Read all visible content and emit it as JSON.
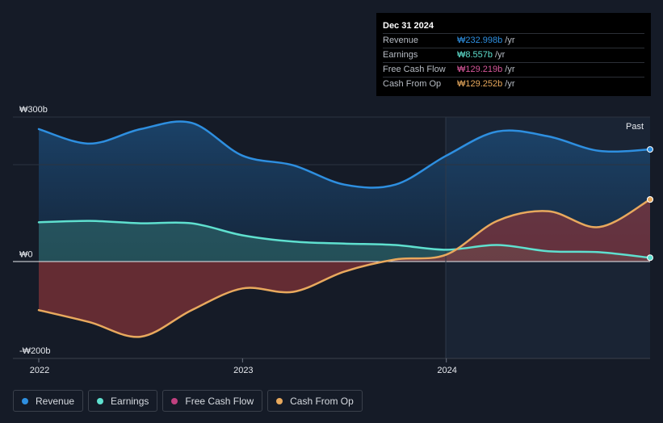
{
  "tooltip": {
    "date": "Dec 31 2024",
    "rows": [
      {
        "label": "Revenue",
        "value": "₩232.998b",
        "unit": "/yr",
        "color": "#2e8fe0"
      },
      {
        "label": "Earnings",
        "value": "₩8.557b",
        "unit": "/yr",
        "color": "#5fe0cf"
      },
      {
        "label": "Free Cash Flow",
        "value": "₩129.219b",
        "unit": "/yr",
        "color": "#d6579a"
      },
      {
        "label": "Cash From Op",
        "value": "₩129.252b",
        "unit": "/yr",
        "color": "#e8a95d"
      }
    ]
  },
  "legend": [
    {
      "label": "Revenue",
      "color": "#2e8fe0"
    },
    {
      "label": "Earnings",
      "color": "#5fe0cf"
    },
    {
      "label": "Free Cash Flow",
      "color": "#c0407f"
    },
    {
      "label": "Cash From Op",
      "color": "#e8a95d"
    }
  ],
  "chart_data": {
    "type": "area",
    "title": "",
    "unit_prefix": "₩",
    "y_tick_labels": [
      "₩300b",
      "₩0",
      "-₩200b"
    ],
    "y_ticks": [
      300,
      0,
      -200
    ],
    "ylim": [
      -200,
      300
    ],
    "x_tick_labels": [
      "2022",
      "2023",
      "2024"
    ],
    "x_ticks": [
      2022.0,
      2023.0,
      2024.0
    ],
    "xlim": [
      2022.0,
      2025.0
    ],
    "past_label": "Past",
    "past_start": 2024.0,
    "series": [
      {
        "name": "Revenue",
        "color": "#2e8fe0",
        "points": [
          [
            2022.0,
            275
          ],
          [
            2022.25,
            245
          ],
          [
            2022.5,
            275
          ],
          [
            2022.75,
            288
          ],
          [
            2023.0,
            220
          ],
          [
            2023.25,
            200
          ],
          [
            2023.5,
            160
          ],
          [
            2023.75,
            160
          ],
          [
            2024.0,
            220
          ],
          [
            2024.25,
            270
          ],
          [
            2024.5,
            260
          ],
          [
            2024.75,
            230
          ],
          [
            2025.0,
            233
          ]
        ]
      },
      {
        "name": "Earnings",
        "color": "#5fe0cf",
        "points": [
          [
            2022.0,
            82
          ],
          [
            2022.25,
            85
          ],
          [
            2022.5,
            80
          ],
          [
            2022.75,
            80
          ],
          [
            2023.0,
            55
          ],
          [
            2023.25,
            42
          ],
          [
            2023.5,
            38
          ],
          [
            2023.75,
            35
          ],
          [
            2024.0,
            25
          ],
          [
            2024.25,
            35
          ],
          [
            2024.5,
            22
          ],
          [
            2024.75,
            20
          ],
          [
            2025.0,
            8.6
          ]
        ]
      },
      {
        "name": "Free Cash Flow",
        "color": "#d6579a",
        "points": [
          [
            2022.0,
            -100
          ],
          [
            2022.25,
            -125
          ],
          [
            2022.5,
            -155
          ],
          [
            2022.75,
            -100
          ],
          [
            2023.0,
            -55
          ],
          [
            2023.25,
            -62
          ],
          [
            2023.5,
            -20
          ],
          [
            2023.75,
            5
          ],
          [
            2024.0,
            15
          ],
          [
            2024.25,
            85
          ],
          [
            2024.5,
            105
          ],
          [
            2024.75,
            72
          ],
          [
            2025.0,
            129.2
          ]
        ]
      },
      {
        "name": "Cash From Op",
        "color": "#e8a95d",
        "points": [
          [
            2022.0,
            -100
          ],
          [
            2022.25,
            -125
          ],
          [
            2022.5,
            -155
          ],
          [
            2022.75,
            -100
          ],
          [
            2023.0,
            -55
          ],
          [
            2023.25,
            -62
          ],
          [
            2023.5,
            -20
          ],
          [
            2023.75,
            5
          ],
          [
            2024.0,
            15
          ],
          [
            2024.25,
            85
          ],
          [
            2024.5,
            105
          ],
          [
            2024.75,
            72
          ],
          [
            2025.0,
            129.3
          ]
        ]
      }
    ]
  }
}
